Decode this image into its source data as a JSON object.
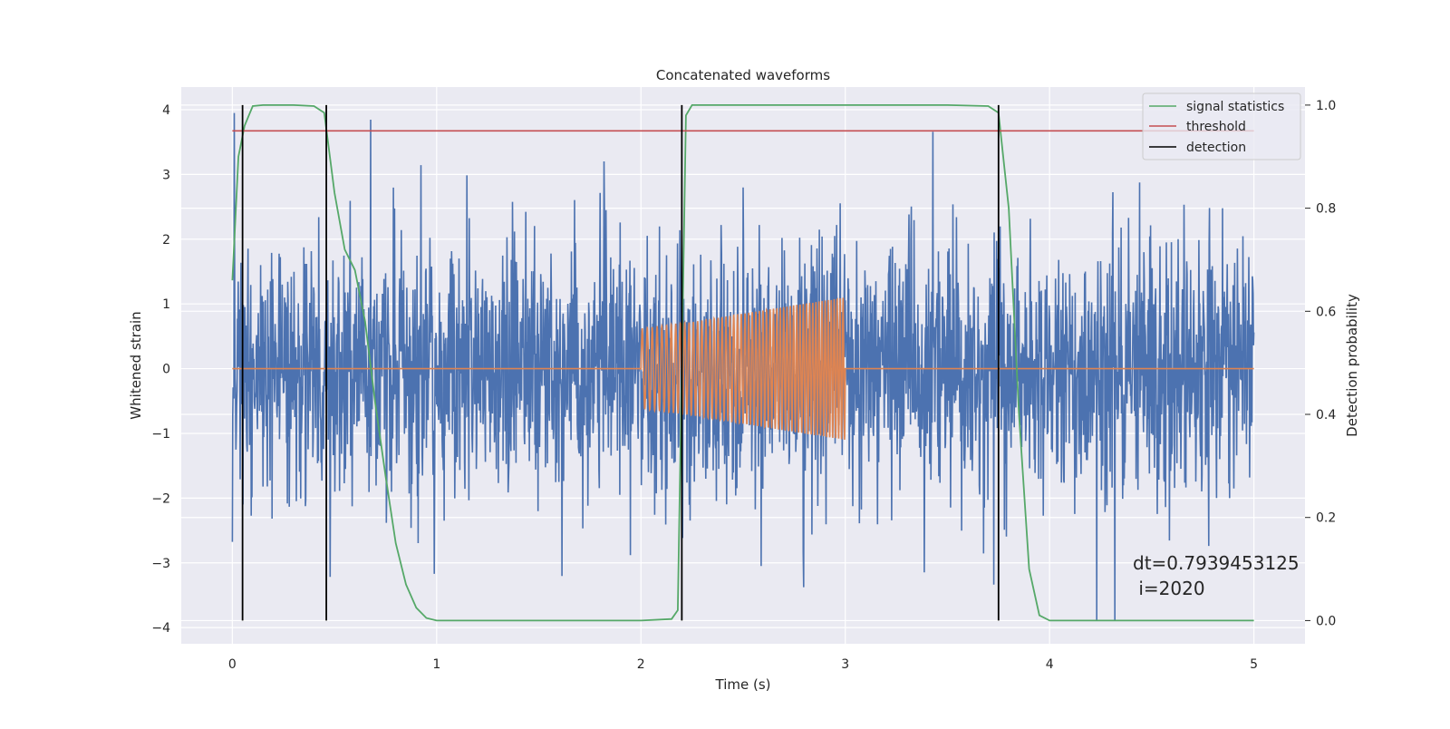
{
  "chart_data": {
    "type": "line",
    "title": "Concatenated waveforms",
    "xlabel": "Time (s)",
    "ylabel": "Whitened strain",
    "y2label": "Detection probability",
    "xlim": [
      -0.25,
      5.25
    ],
    "ylim": [
      -4.25,
      4.35
    ],
    "y2lim": [
      -0.045,
      1.035
    ],
    "xticks": [
      0,
      1,
      2,
      3,
      4,
      5
    ],
    "yticks": [
      -4,
      -3,
      -2,
      -1,
      0,
      1,
      2,
      3,
      4
    ],
    "y2ticks": [
      0.0,
      0.2,
      0.4,
      0.6,
      0.8,
      1.0
    ],
    "xtick_labels": [
      "0",
      "1",
      "2",
      "3",
      "4",
      "5"
    ],
    "ytick_labels": [
      "−4",
      "−3",
      "−2",
      "−1",
      "0",
      "1",
      "2",
      "3",
      "4"
    ],
    "y2tick_labels": [
      "0.0",
      "0.2",
      "0.4",
      "0.6",
      "0.8",
      "1.0"
    ],
    "grid": true,
    "legend_position": "top-right",
    "legend": [
      "signal statistics",
      "threshold",
      "detection"
    ],
    "colors": {
      "noise": "#4c72b0",
      "injection": "#dd8452",
      "signal_statistics": "#55a868",
      "threshold": "#c44e52",
      "detection": "#000000",
      "plot_bg": "#eaeaf2",
      "grid": "#ffffff"
    },
    "series": [
      {
        "name": "",
        "axis": "left",
        "description_of_shape": "whitened noise, 0 to 5 s",
        "x_range": [
          0,
          5
        ],
        "amplitude_envelope": [
          -3.9,
          3.95
        ]
      },
      {
        "name": "",
        "axis": "left",
        "x": [
          0,
          2,
          2,
          2.25,
          2.5,
          2.75,
          3,
          3,
          5
        ],
        "amplitude": [
          0,
          0,
          0.62,
          0.72,
          0.85,
          0.98,
          1.1,
          0,
          0
        ]
      },
      {
        "name": "signal statistics",
        "axis": "right",
        "x": [
          0,
          0.03,
          0.06,
          0.1,
          0.15,
          0.2,
          0.3,
          0.4,
          0.45,
          0.5,
          0.55,
          0.6,
          0.65,
          0.7,
          0.75,
          0.8,
          0.85,
          0.9,
          0.95,
          1.0,
          1.5,
          2.0,
          2.15,
          2.18,
          2.2,
          2.22,
          2.25,
          2.3,
          2.5,
          3.0,
          3.5,
          3.7,
          3.75,
          3.8,
          3.85,
          3.9,
          3.95,
          4.0,
          4.5,
          5.0
        ],
        "values": [
          0.66,
          0.9,
          0.96,
          0.998,
          1.0,
          1.0,
          1.0,
          0.998,
          0.985,
          0.83,
          0.72,
          0.68,
          0.58,
          0.42,
          0.28,
          0.15,
          0.07,
          0.025,
          0.005,
          0.0,
          0.0,
          0.0,
          0.003,
          0.02,
          0.5,
          0.98,
          1.0,
          1.0,
          1.0,
          1.0,
          1.0,
          0.998,
          0.985,
          0.8,
          0.4,
          0.1,
          0.01,
          0.0,
          0.0,
          0.0
        ]
      },
      {
        "name": "threshold",
        "axis": "right",
        "x": [
          0,
          5
        ],
        "values": [
          0.95,
          0.95
        ]
      }
    ],
    "detections": [
      0.05,
      0.46,
      2.2,
      3.75
    ],
    "annotation_lines": [
      "dt=0.7939453125",
      " i=2020"
    ]
  }
}
